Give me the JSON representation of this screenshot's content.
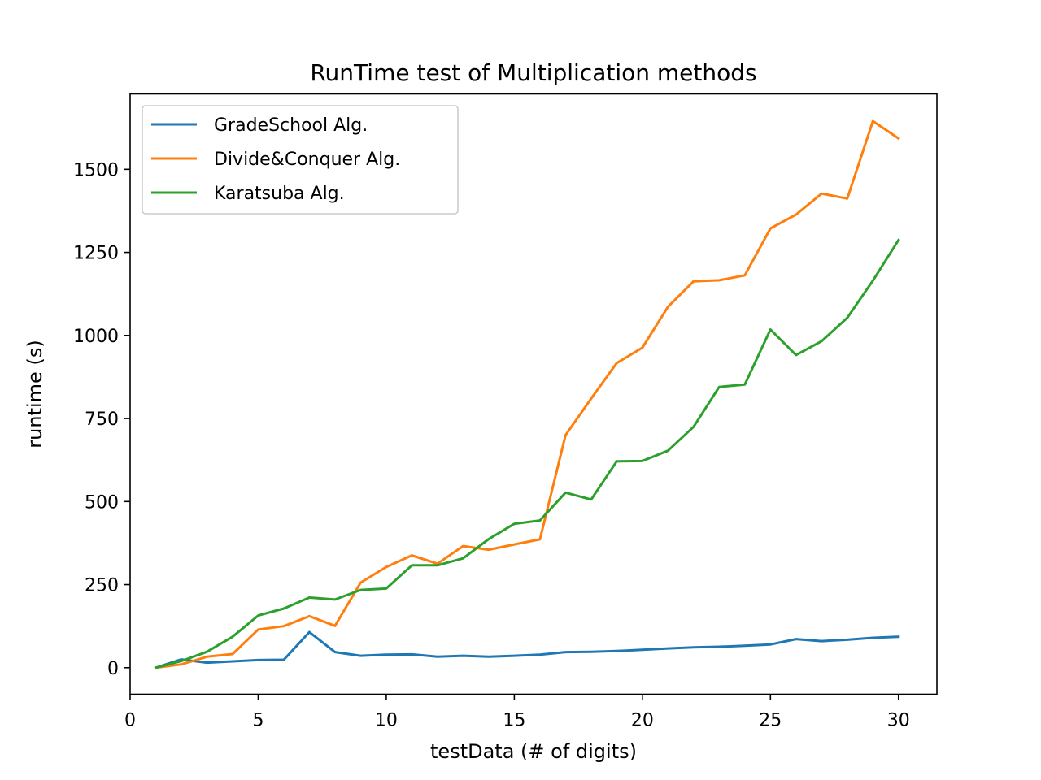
{
  "chart_data": {
    "type": "line",
    "title": "RunTime test of Multiplication methods",
    "xlabel": "testData (# of digits)",
    "ylabel": "runtime (s)",
    "xlim": [
      0,
      31.5
    ],
    "ylim": [
      -80,
      1727
    ],
    "xticks": [
      0,
      5,
      10,
      15,
      20,
      25,
      30
    ],
    "yticks": [
      0,
      250,
      500,
      750,
      1000,
      1250,
      1500
    ],
    "grid": false,
    "legend_position": "upper-left",
    "x": [
      1,
      2,
      3,
      4,
      5,
      6,
      7,
      8,
      9,
      10,
      11,
      12,
      13,
      14,
      15,
      16,
      17,
      18,
      19,
      20,
      21,
      22,
      23,
      24,
      25,
      26,
      27,
      28,
      29,
      30
    ],
    "series": [
      {
        "name": "GradeSchool Alg.",
        "color": "#1f77b4",
        "values": [
          0,
          25,
          15,
          19,
          23,
          24,
          107,
          47,
          36,
          39,
          40,
          33,
          36,
          33,
          36,
          39,
          47,
          48,
          50,
          54,
          58,
          61,
          63,
          66,
          70,
          86,
          80,
          84,
          90,
          93
        ]
      },
      {
        "name": "Divide&Conquer Alg.",
        "color": "#ff7f0e",
        "values": [
          0,
          10,
          33,
          41,
          115,
          125,
          155,
          126,
          256,
          303,
          338,
          313,
          366,
          355,
          371,
          386,
          700,
          810,
          917,
          963,
          1086,
          1163,
          1166,
          1181,
          1322,
          1364,
          1427,
          1412,
          1645,
          1593
        ]
      },
      {
        "name": "Karatsuba Alg.",
        "color": "#2ca02c",
        "values": [
          0,
          20,
          48,
          93,
          157,
          178,
          211,
          205,
          234,
          238,
          308,
          308,
          329,
          387,
          433,
          443,
          527,
          506,
          621,
          622,
          653,
          725,
          845,
          852,
          1018,
          941,
          983,
          1053,
          1165,
          1287
        ]
      }
    ]
  }
}
